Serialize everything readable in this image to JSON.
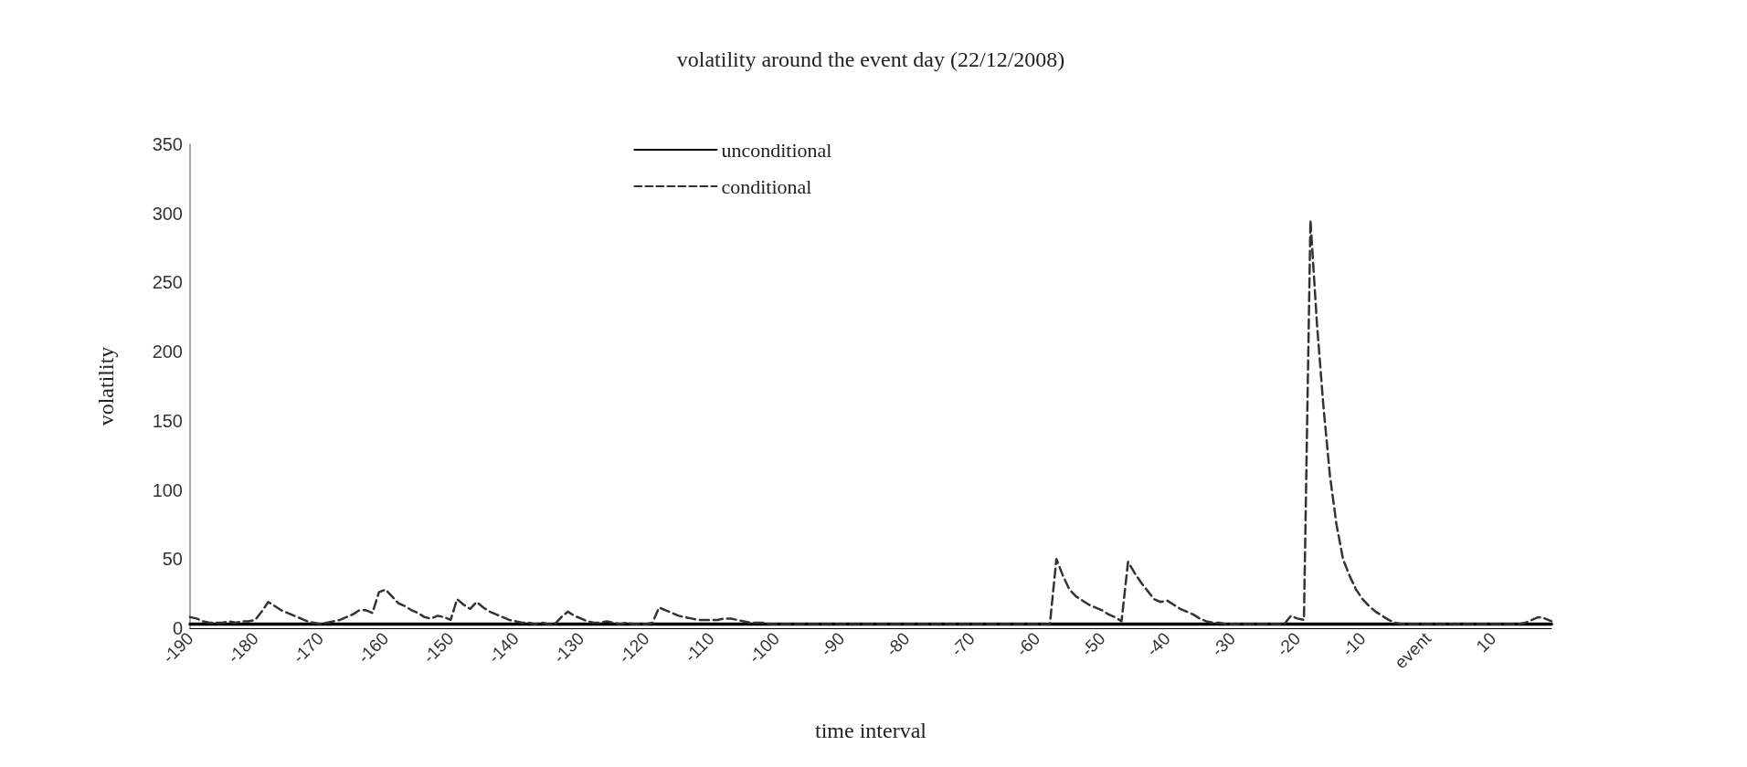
{
  "chart_data": {
    "type": "line",
    "title": "volatility around the event day (22/12/2008)",
    "xlabel": "time interval",
    "ylabel": "volatility",
    "categories": [
      "-190",
      null,
      null,
      null,
      null,
      null,
      null,
      null,
      null,
      null,
      "-180",
      null,
      null,
      null,
      null,
      null,
      null,
      null,
      null,
      null,
      "-170",
      null,
      null,
      null,
      null,
      null,
      null,
      null,
      null,
      null,
      "-160",
      null,
      null,
      null,
      null,
      null,
      null,
      null,
      null,
      null,
      "-150",
      null,
      null,
      null,
      null,
      null,
      null,
      null,
      null,
      null,
      "-140",
      null,
      null,
      null,
      null,
      null,
      null,
      null,
      null,
      null,
      "-130",
      null,
      null,
      null,
      null,
      null,
      null,
      null,
      null,
      null,
      "-120",
      null,
      null,
      null,
      null,
      null,
      null,
      null,
      null,
      null,
      "-110",
      null,
      null,
      null,
      null,
      null,
      null,
      null,
      null,
      null,
      "-100",
      null,
      null,
      null,
      null,
      null,
      null,
      null,
      null,
      null,
      "-90",
      null,
      null,
      null,
      null,
      null,
      null,
      null,
      null,
      null,
      "-80",
      null,
      null,
      null,
      null,
      null,
      null,
      null,
      null,
      null,
      "-70",
      null,
      null,
      null,
      null,
      null,
      null,
      null,
      null,
      null,
      "-60",
      null,
      null,
      null,
      null,
      null,
      null,
      null,
      null,
      null,
      "-50",
      null,
      null,
      null,
      null,
      null,
      null,
      null,
      null,
      null,
      "-40",
      null,
      null,
      null,
      null,
      null,
      null,
      null,
      null,
      null,
      "-30",
      null,
      null,
      null,
      null,
      null,
      null,
      null,
      null,
      null,
      "-20",
      null,
      null,
      null,
      null,
      null,
      null,
      null,
      null,
      null,
      "-10",
      null,
      null,
      null,
      null,
      null,
      null,
      null,
      null,
      null,
      "event",
      null,
      null,
      null,
      null,
      null,
      null,
      null,
      null,
      null,
      "10",
      null,
      null,
      null,
      null,
      null,
      null,
      null,
      null,
      null
    ],
    "series": [
      {
        "name": "unconditional",
        "color": "#000000",
        "line_style": "solid",
        "values": [
          3,
          3,
          3,
          3,
          3,
          3,
          3,
          3,
          3,
          3,
          3,
          3,
          3,
          3,
          3,
          3,
          3,
          3,
          3,
          3,
          3,
          3,
          3,
          3,
          3,
          3,
          3,
          3,
          3,
          3,
          3,
          3,
          3,
          3,
          3,
          3,
          3,
          3,
          3,
          3,
          3,
          3,
          3,
          3,
          3,
          3,
          3,
          3,
          3,
          3,
          3,
          3,
          3,
          3,
          3,
          3,
          3,
          3,
          3,
          3,
          3,
          3,
          3,
          3,
          3,
          3,
          3,
          3,
          3,
          3,
          3,
          3,
          3,
          3,
          3,
          3,
          3,
          3,
          3,
          3,
          3,
          3,
          3,
          3,
          3,
          3,
          3,
          3,
          3,
          3,
          3,
          3,
          3,
          3,
          3,
          3,
          3,
          3,
          3,
          3,
          3,
          3,
          3,
          3,
          3,
          3,
          3,
          3,
          3,
          3,
          3,
          3,
          3,
          3,
          3,
          3,
          3,
          3,
          3,
          3,
          3,
          3,
          3,
          3,
          3,
          3,
          3,
          3,
          3,
          3,
          3,
          3,
          3,
          3,
          3,
          3,
          3,
          3,
          3,
          3,
          3,
          3,
          3,
          3,
          3,
          3,
          3,
          3,
          3,
          3,
          3,
          3,
          3,
          3,
          3,
          3,
          3,
          3,
          3,
          3,
          3,
          3,
          3,
          3,
          3,
          3,
          3,
          3,
          3,
          3,
          3,
          3,
          3,
          3,
          3,
          3,
          3,
          3,
          3,
          3,
          3,
          3,
          3,
          3,
          3,
          3,
          3,
          3,
          3,
          3,
          3,
          3,
          3,
          3,
          3,
          3,
          3,
          3,
          3,
          3,
          3,
          3,
          3,
          3,
          3,
          3,
          3,
          3,
          3,
          3
        ]
      },
      {
        "name": "conditional",
        "color": "#333333",
        "line_style": "dashed",
        "values": [
          8,
          7,
          5,
          4,
          4,
          4,
          5,
          4,
          5,
          5,
          6,
          12,
          19,
          16,
          13,
          11,
          9,
          7,
          5,
          4,
          3,
          4,
          5,
          6,
          8,
          10,
          13,
          13,
          11,
          26,
          28,
          23,
          18,
          16,
          13,
          11,
          8,
          7,
          9,
          8,
          6,
          21,
          17,
          14,
          19,
          15,
          12,
          10,
          8,
          6,
          5,
          4,
          4,
          3,
          4,
          3,
          3,
          8,
          12,
          9,
          7,
          5,
          4,
          4,
          5,
          4,
          3,
          4,
          3,
          3,
          3,
          4,
          15,
          13,
          11,
          9,
          8,
          7,
          6,
          6,
          6,
          6,
          7,
          7,
          6,
          5,
          4,
          4,
          4,
          3,
          3,
          3,
          3,
          3,
          3,
          3,
          3,
          3,
          3,
          3,
          3,
          3,
          3,
          3,
          3,
          3,
          3,
          3,
          3,
          3,
          3,
          3,
          3,
          3,
          3,
          3,
          3,
          3,
          3,
          3,
          3,
          3,
          3,
          3,
          3,
          3,
          3,
          3,
          3,
          3,
          3,
          3,
          3,
          50,
          38,
          28,
          23,
          20,
          17,
          15,
          13,
          10,
          8,
          5,
          48,
          40,
          33,
          27,
          21,
          19,
          20,
          17,
          14,
          12,
          10,
          7,
          5,
          4,
          4,
          3,
          3,
          3,
          3,
          3,
          3,
          3,
          3,
          3,
          3,
          9,
          7,
          6,
          295,
          220,
          160,
          110,
          75,
          50,
          38,
          28,
          21,
          16,
          12,
          9,
          6,
          4,
          3,
          3,
          3,
          3,
          3,
          3,
          3,
          3,
          3,
          3,
          3,
          3,
          3,
          3,
          3,
          3,
          3,
          3,
          3,
          4,
          6,
          8,
          7,
          5
        ]
      }
    ],
    "ylim": [
      0,
      350
    ],
    "yticks": [
      0,
      50,
      100,
      150,
      200,
      250,
      300,
      350
    ],
    "grid": false,
    "legend": "top",
    "marker": "none"
  }
}
